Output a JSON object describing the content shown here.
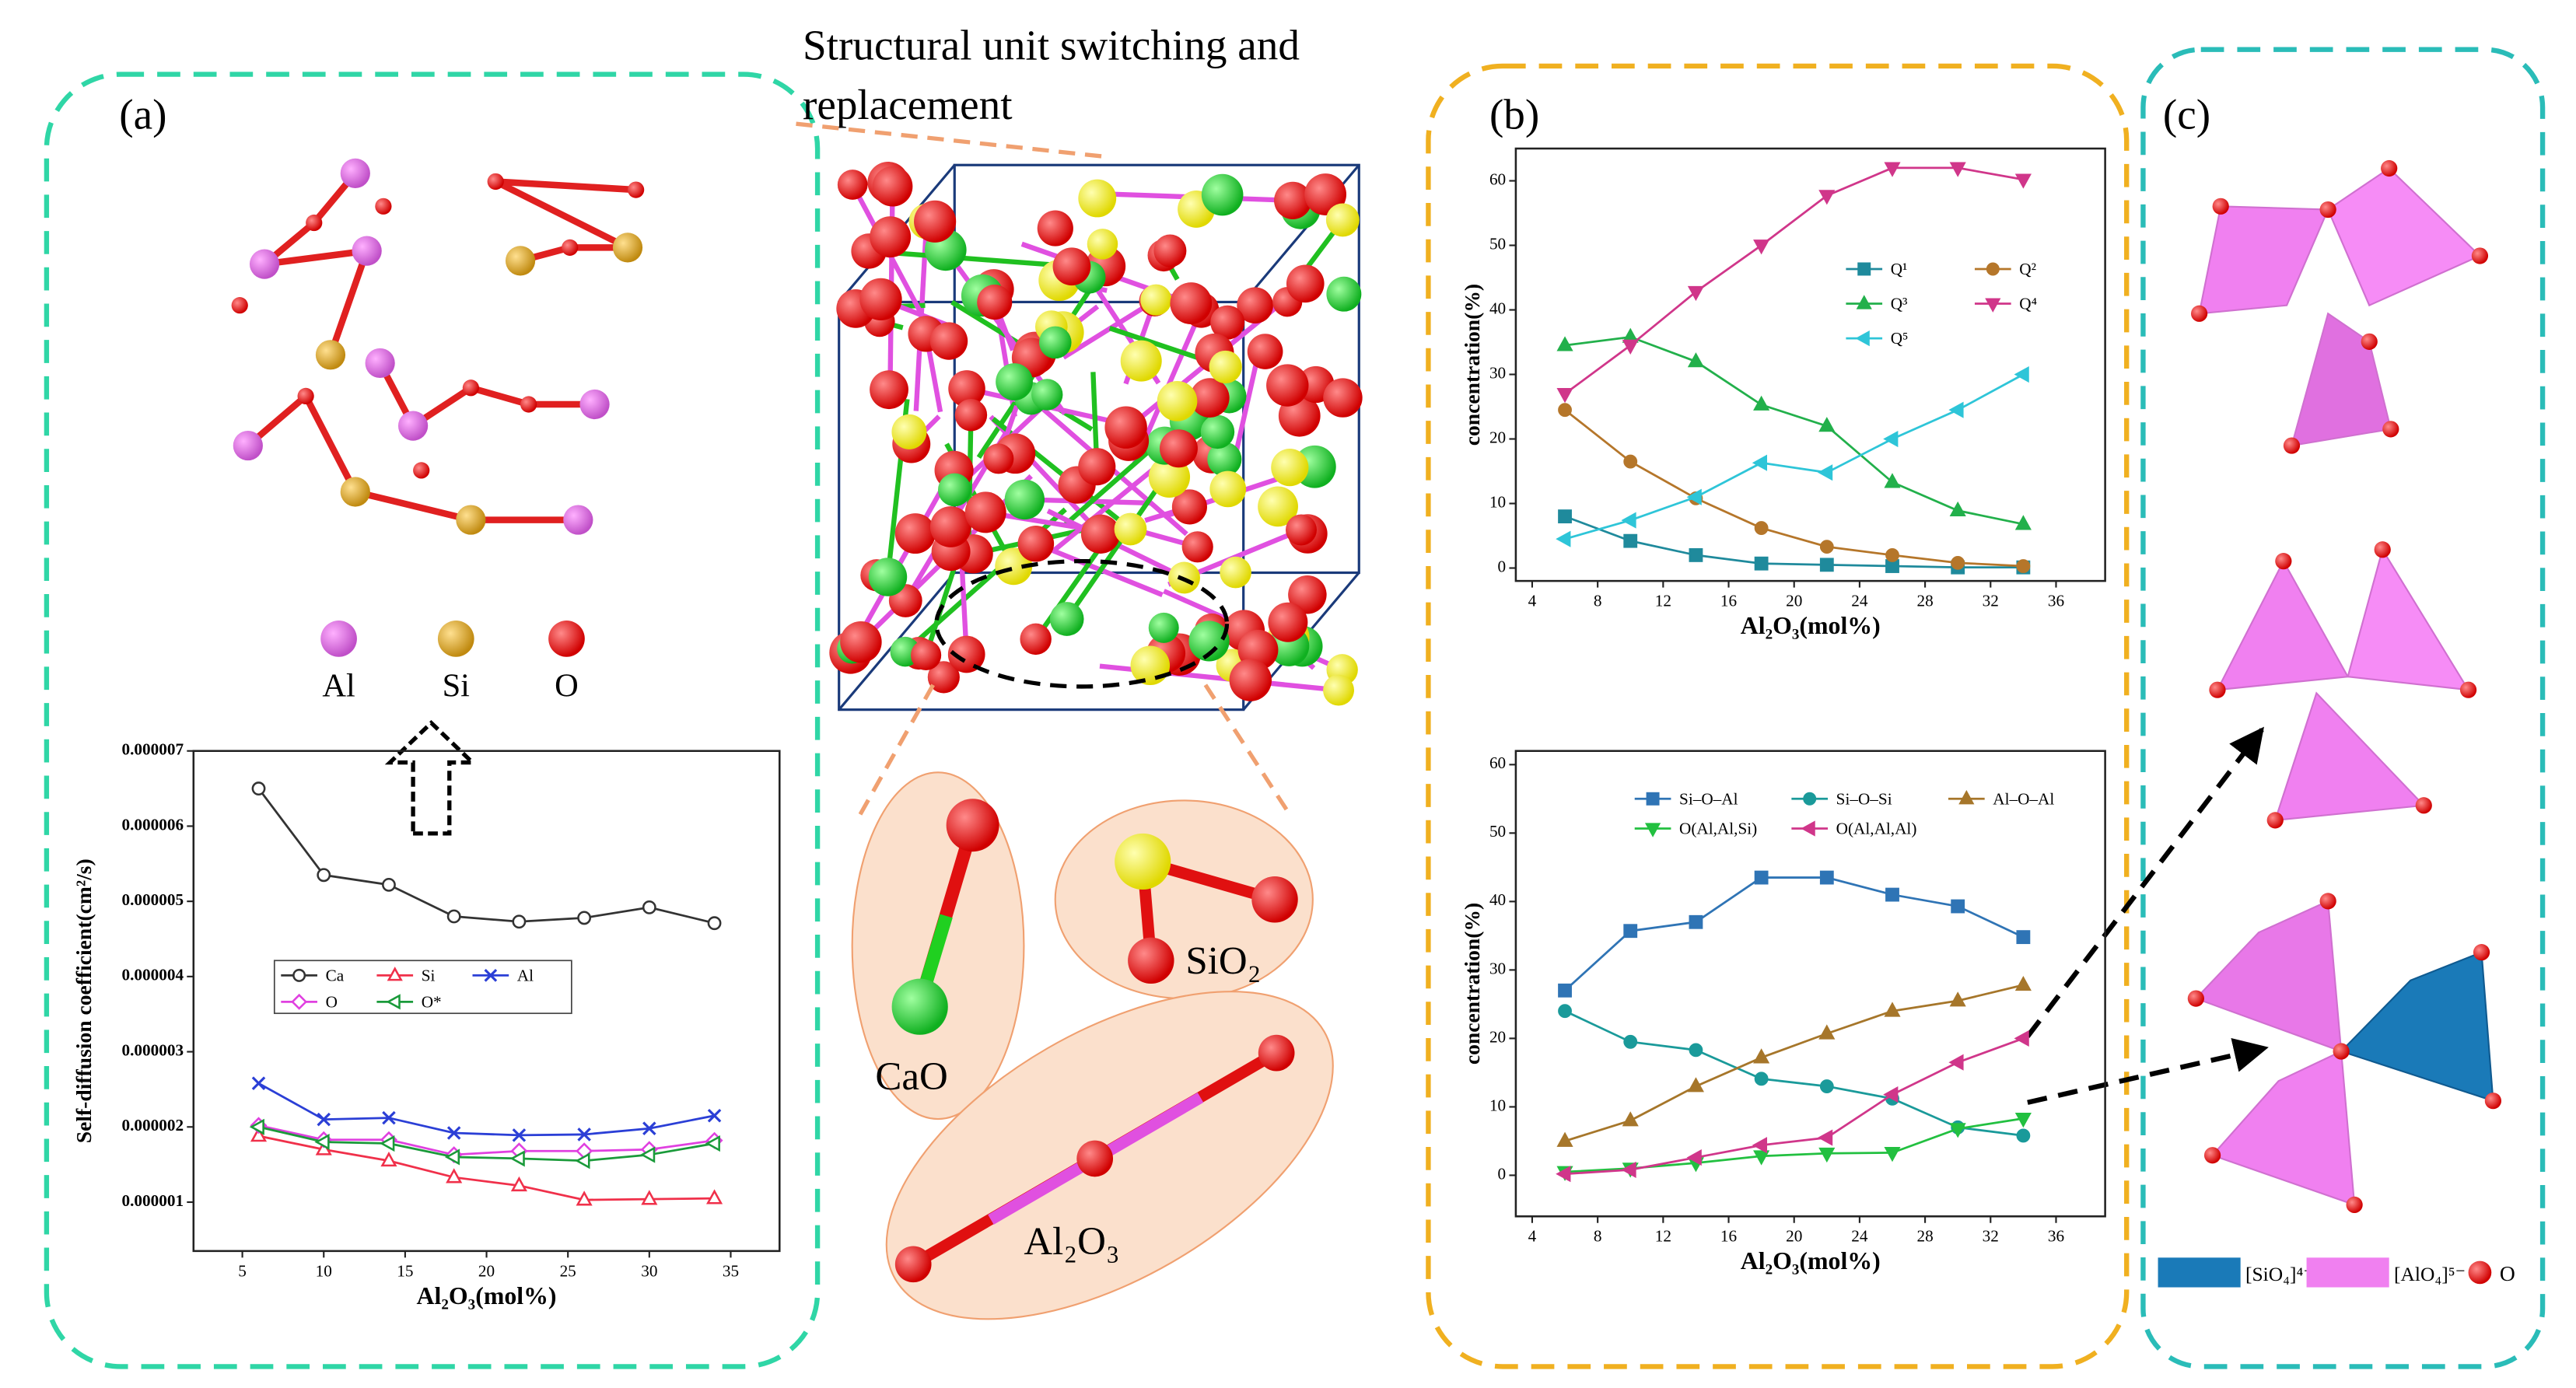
{
  "figure": {
    "panel_a": "(a)",
    "panel_b": "(b)",
    "panel_c": "(c)",
    "caption": [
      "Structural unit switching and",
      "replacement"
    ],
    "atoms": [
      "Al",
      "Si",
      "O"
    ],
    "molecules": [
      "CaO",
      "SiO₂",
      "Al₂O₃"
    ],
    "units_legend": [
      "[SiO₄]⁴⁻",
      "[AlO₄]⁵⁻",
      "O"
    ]
  },
  "chart_data": [
    {
      "type": "line",
      "ylabel": "Self-diffusion coefficient(cm²/s)",
      "xlabel": "Al₂O₃(mol%)",
      "x": [
        6,
        10,
        14,
        18,
        22,
        26,
        30,
        34
      ],
      "xlim": [
        2,
        38
      ],
      "xticks": [
        5,
        10,
        15,
        20,
        25,
        30,
        35
      ],
      "ylim": [
        3.5e-07,
        7e-06
      ],
      "yticks": [
        1e-06,
        2e-06,
        3e-06,
        4e-06,
        5e-06,
        6e-06,
        7e-06
      ],
      "series": [
        {
          "name": "Ca",
          "color": "#333333",
          "marker": "circle-open",
          "values": [
            6.5e-06,
            5.35e-06,
            5.22e-06,
            4.8e-06,
            4.73e-06,
            4.78e-06,
            4.92e-06,
            4.71e-06
          ]
        },
        {
          "name": "Si",
          "color": "#f0304a",
          "marker": "triangle-open",
          "values": [
            1.88e-06,
            1.7e-06,
            1.55e-06,
            1.33e-06,
            1.22e-06,
            1.03e-06,
            1.04e-06,
            1.05e-06
          ]
        },
        {
          "name": "Al",
          "color": "#2b3fd6",
          "marker": "x",
          "values": [
            2.58e-06,
            2.1e-06,
            2.12e-06,
            1.92e-06,
            1.89e-06,
            1.9e-06,
            1.98e-06,
            2.15e-06
          ]
        },
        {
          "name": "O",
          "color": "#e040e0",
          "marker": "diamond-open",
          "values": [
            2.02e-06,
            1.83e-06,
            1.83e-06,
            1.63e-06,
            1.68e-06,
            1.68e-06,
            1.7e-06,
            1.82e-06
          ]
        },
        {
          "name": "O*",
          "color": "#1a9a3a",
          "marker": "triangle-left-open",
          "values": [
            2e-06,
            1.8e-06,
            1.78e-06,
            1.6e-06,
            1.58e-06,
            1.55e-06,
            1.63e-06,
            1.78e-06
          ]
        }
      ]
    },
    {
      "type": "line",
      "ylabel": "concentration(%)",
      "xlabel": "Al₂O₃(mol%)",
      "x": [
        6,
        10,
        14,
        18,
        22,
        26,
        30,
        34
      ],
      "xlim": [
        3,
        39
      ],
      "xticks": [
        4,
        8,
        12,
        16,
        20,
        24,
        28,
        32,
        36
      ],
      "ylim": [
        -2,
        65
      ],
      "yticks": [
        0,
        10,
        20,
        30,
        40,
        50,
        60
      ],
      "series": [
        {
          "name": "Q¹",
          "color": "#1f8a9c",
          "marker": "square",
          "values": [
            8,
            4.2,
            2,
            0.7,
            0.5,
            0.3,
            0.1,
            0.1
          ]
        },
        {
          "name": "Q²",
          "color": "#b5762a",
          "marker": "circle",
          "values": [
            24.5,
            16.5,
            10.8,
            6.2,
            3.3,
            2,
            0.8,
            0.3
          ]
        },
        {
          "name": "Q³",
          "color": "#22b04b",
          "marker": "triangle",
          "values": [
            34.5,
            35.8,
            32,
            25.3,
            22,
            13.3,
            8.9,
            6.8
          ]
        },
        {
          "name": "Q⁴",
          "color": "#d0368a",
          "marker": "triangle-down",
          "values": [
            27,
            34.5,
            42.8,
            50,
            57.7,
            62,
            62,
            60.2
          ]
        },
        {
          "name": "Q⁵",
          "color": "#2ec5d8",
          "marker": "triangle-left",
          "values": [
            4.5,
            7.4,
            11,
            16.3,
            14.8,
            20,
            24.5,
            30
          ]
        }
      ]
    },
    {
      "type": "line",
      "ylabel": "concentration(%)",
      "xlabel": "Al₂O₃(mol%)",
      "x": [
        6,
        10,
        14,
        18,
        22,
        26,
        30,
        34
      ],
      "xlim": [
        3,
        39
      ],
      "xticks": [
        4,
        8,
        12,
        16,
        20,
        24,
        28,
        32,
        36
      ],
      "ylim": [
        -6,
        62
      ],
      "yticks": [
        0,
        10,
        20,
        30,
        40,
        50,
        60
      ],
      "series": [
        {
          "name": "Si–O–Al",
          "color": "#2f74b5",
          "marker": "square",
          "values": [
            27,
            35.7,
            37,
            43.5,
            43.5,
            41,
            39.3,
            34.8
          ]
        },
        {
          "name": "Si–O–Si",
          "color": "#1a9a9a",
          "marker": "circle",
          "values": [
            24,
            19.5,
            18.3,
            14.1,
            13,
            11.2,
            7,
            5.8
          ]
        },
        {
          "name": "Al–O–Al",
          "color": "#a6762a",
          "marker": "triangle",
          "values": [
            5,
            8,
            13,
            17.2,
            20.7,
            24,
            25.5,
            27.8
          ]
        },
        {
          "name": "O(Al,Al,Si)",
          "color": "#22c040",
          "marker": "triangle-down",
          "values": [
            0.5,
            1,
            1.8,
            2.8,
            3.2,
            3.3,
            6.8,
            8.3
          ]
        },
        {
          "name": "O(Al,Al,Al)",
          "color": "#d0368a",
          "marker": "triangle-left",
          "values": [
            0.2,
            0.8,
            2.6,
            4.4,
            5.5,
            11.8,
            16.5,
            20
          ]
        }
      ]
    }
  ]
}
